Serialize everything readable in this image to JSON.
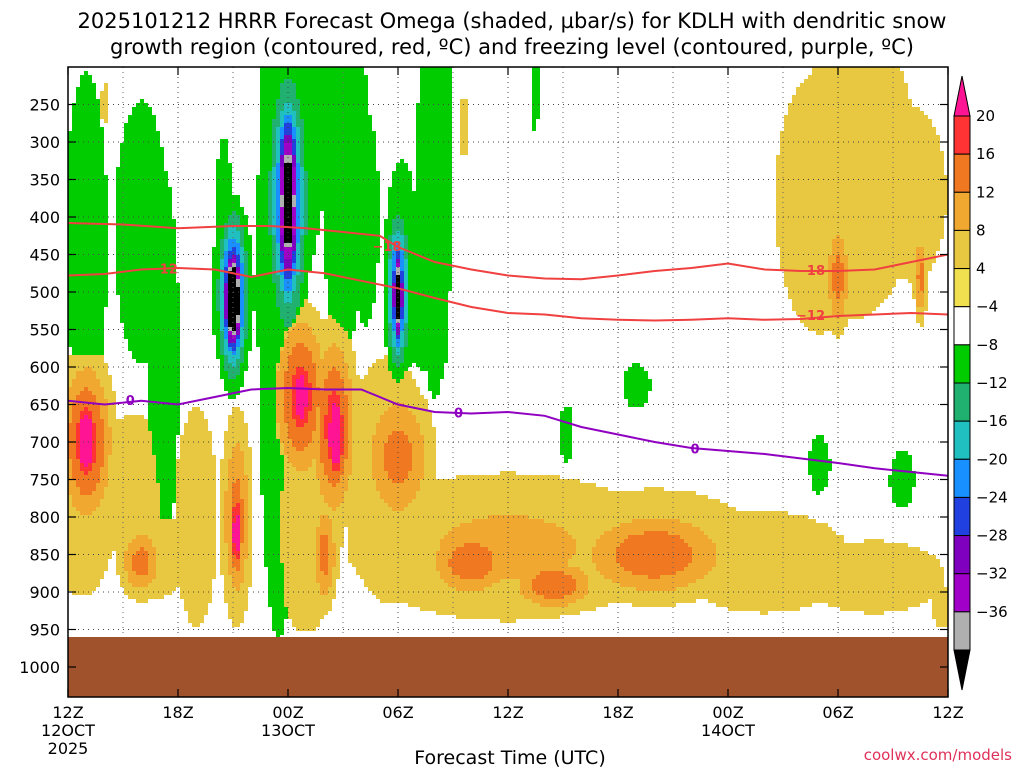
{
  "chart_data": {
    "type": "heatmap",
    "title_line1": "2025101212 HRRR Forecast Omega (shaded, µbar/s) for KDLH with dendritic snow",
    "title_line2": "growth region (contoured, red, ºC) and freezing level (contoured, purple, ºC)",
    "xlabel": "Forecast Time (UTC)",
    "credit": "coolwx.com/models",
    "x_range_hours": [
      0,
      48
    ],
    "y_range_hpa": [
      200,
      1040
    ],
    "x_ticks": [
      {
        "h": 0,
        "label": "12Z",
        "sub1": "12OCT",
        "sub2": "2025"
      },
      {
        "h": 6,
        "label": "18Z",
        "sub1": "",
        "sub2": ""
      },
      {
        "h": 12,
        "label": "00Z",
        "sub1": "13OCT",
        "sub2": ""
      },
      {
        "h": 18,
        "label": "06Z",
        "sub1": "",
        "sub2": ""
      },
      {
        "h": 24,
        "label": "12Z",
        "sub1": "",
        "sub2": ""
      },
      {
        "h": 30,
        "label": "18Z",
        "sub1": "",
        "sub2": ""
      },
      {
        "h": 36,
        "label": "00Z",
        "sub1": "14OCT",
        "sub2": ""
      },
      {
        "h": 42,
        "label": "06Z",
        "sub1": "",
        "sub2": ""
      },
      {
        "h": 48,
        "label": "12Z",
        "sub1": "",
        "sub2": ""
      }
    ],
    "y_ticks": [
      250,
      300,
      350,
      400,
      450,
      500,
      550,
      600,
      650,
      700,
      750,
      800,
      850,
      900,
      950,
      1000
    ],
    "colorbar": {
      "labels": [
        "20",
        "16",
        "12",
        "8",
        "4",
        "−4",
        "−8",
        "−12",
        "−16",
        "−20",
        "−24",
        "−28",
        "−32",
        "−36"
      ],
      "colors": [
        "#ff1493",
        "#ff3333",
        "#f07820",
        "#f0a830",
        "#e8c840",
        "#f0e050",
        "#ffffff",
        "#00cc00",
        "#20b070",
        "#20c0c0",
        "#1890ff",
        "#2040e0",
        "#8000c0",
        "#a000c8",
        "#b0b0b0",
        "#000000"
      ]
    },
    "omega_blobs": [
      {
        "h": 1.0,
        "p": 700,
        "dh": 1.2,
        "dp": 90,
        "v": 12
      },
      {
        "h": 1.0,
        "p": 700,
        "dh": 0.6,
        "dp": 50,
        "v": 18
      },
      {
        "h": 0.8,
        "p": 760,
        "dh": 2.0,
        "dp": 150,
        "v": 5
      },
      {
        "h": 3.5,
        "p": 760,
        "dh": 2.0,
        "dp": 100,
        "v": 5
      },
      {
        "h": 4.0,
        "p": 860,
        "dh": 1.0,
        "dp": 40,
        "v": 9
      },
      {
        "h": 5.0,
        "p": 850,
        "dh": 1.5,
        "dp": 60,
        "v": 5
      },
      {
        "h": 7.0,
        "p": 800,
        "dh": 1.2,
        "dp": 150,
        "v": 5
      },
      {
        "h": 9.2,
        "p": 800,
        "dh": 0.7,
        "dp": 110,
        "v": 9
      },
      {
        "h": 9.2,
        "p": 820,
        "dh": 0.3,
        "dp": 50,
        "v": 16
      },
      {
        "h": 12.7,
        "p": 640,
        "dh": 1.2,
        "dp": 90,
        "v": 12
      },
      {
        "h": 12.7,
        "p": 640,
        "dh": 0.5,
        "dp": 40,
        "v": 18
      },
      {
        "h": 14.5,
        "p": 680,
        "dh": 1.0,
        "dp": 100,
        "v": 12
      },
      {
        "h": 14.6,
        "p": 690,
        "dh": 0.4,
        "dp": 50,
        "v": 21
      },
      {
        "h": 13.0,
        "p": 760,
        "dh": 2.2,
        "dp": 200,
        "v": 5
      },
      {
        "h": 14.0,
        "p": 850,
        "dh": 0.6,
        "dp": 60,
        "v": 9
      },
      {
        "h": 18.0,
        "p": 720,
        "dh": 1.6,
        "dp": 80,
        "v": 9
      },
      {
        "h": 17.5,
        "p": 750,
        "dh": 2.5,
        "dp": 170,
        "v": 5
      },
      {
        "h": 24.0,
        "p": 840,
        "dh": 8.0,
        "dp": 90,
        "v": 6
      },
      {
        "h": 22.0,
        "p": 860,
        "dh": 2.0,
        "dp": 40,
        "v": 10
      },
      {
        "h": 26.5,
        "p": 890,
        "dh": 2.0,
        "dp": 30,
        "v": 10
      },
      {
        "h": 32.0,
        "p": 850,
        "dh": 3.5,
        "dp": 50,
        "v": 10
      },
      {
        "h": 32.0,
        "p": 840,
        "dh": 6.0,
        "dp": 80,
        "v": 5
      },
      {
        "h": 38.0,
        "p": 860,
        "dh": 5.0,
        "dp": 70,
        "v": 5
      },
      {
        "h": 44.0,
        "p": 880,
        "dh": 4.0,
        "dp": 50,
        "v": 5
      },
      {
        "h": 43.0,
        "p": 340,
        "dh": 3.5,
        "dp": 200,
        "v": 5
      },
      {
        "h": 41.0,
        "p": 380,
        "dh": 2.5,
        "dp": 180,
        "v": 5
      },
      {
        "h": 46.0,
        "p": 370,
        "dh": 2.0,
        "dp": 120,
        "v": 5
      },
      {
        "h": 42.0,
        "p": 480,
        "dh": 0.6,
        "dp": 60,
        "v": 9
      },
      {
        "h": 46.5,
        "p": 480,
        "dh": 0.3,
        "dp": 50,
        "v": 9
      },
      {
        "h": 12.1,
        "p": 250,
        "dh": 0.2,
        "dp": 15,
        "v": 5
      },
      {
        "h": 21.6,
        "p": 280,
        "dh": 0.3,
        "dp": 40,
        "v": 5
      },
      {
        "h": 2.0,
        "p": 250,
        "dh": 0.2,
        "dp": 30,
        "v": 5
      },
      {
        "h": 48.0,
        "p": 920,
        "dh": 1.0,
        "dp": 30,
        "v": 5
      },
      {
        "h": 1.0,
        "p": 430,
        "dh": 1.2,
        "dp": 230,
        "v": -5
      },
      {
        "h": 4.0,
        "p": 420,
        "dh": 1.5,
        "dp": 180,
        "v": -5
      },
      {
        "h": 5.2,
        "p": 590,
        "dh": 0.9,
        "dp": 260,
        "v": -5
      },
      {
        "h": 8.5,
        "p": 420,
        "dh": 0.5,
        "dp": 130,
        "v": -5
      },
      {
        "h": 9.0,
        "p": 500,
        "dh": 1.2,
        "dp": 130,
        "v": -5
      },
      {
        "h": 9.0,
        "p": 505,
        "dh": 0.6,
        "dp": 80,
        "v": -20
      },
      {
        "h": 9.0,
        "p": 510,
        "dh": 0.38,
        "dp": 55,
        "v": -36
      },
      {
        "h": 11.5,
        "p": 460,
        "dh": 1.2,
        "dp": 520,
        "v": -5
      },
      {
        "h": 12.5,
        "p": 300,
        "dh": 1.5,
        "dp": 200,
        "v": -5
      },
      {
        "h": 12.0,
        "p": 380,
        "dh": 0.8,
        "dp": 130,
        "v": -16
      },
      {
        "h": 12.0,
        "p": 380,
        "dh": 0.5,
        "dp": 100,
        "v": -28
      },
      {
        "h": 12.0,
        "p": 380,
        "dh": 0.25,
        "dp": 80,
        "v": -36
      },
      {
        "h": 15.0,
        "p": 250,
        "dh": 1.3,
        "dp": 350,
        "v": -5
      },
      {
        "h": 16.2,
        "p": 400,
        "dh": 0.8,
        "dp": 150,
        "v": -5
      },
      {
        "h": 18.2,
        "p": 470,
        "dh": 1.0,
        "dp": 150,
        "v": -5
      },
      {
        "h": 18.0,
        "p": 500,
        "dh": 0.5,
        "dp": 80,
        "v": -16
      },
      {
        "h": 18.0,
        "p": 505,
        "dh": 0.25,
        "dp": 55,
        "v": -28
      },
      {
        "h": 19.5,
        "p": 520,
        "dh": 1.2,
        "dp": 90,
        "v": -5
      },
      {
        "h": 20.0,
        "p": 350,
        "dh": 1.0,
        "dp": 300,
        "v": -5
      },
      {
        "h": 20.3,
        "p": 560,
        "dh": 0.4,
        "dp": 60,
        "v": -5
      },
      {
        "h": 25.5,
        "p": 230,
        "dh": 0.2,
        "dp": 60,
        "v": -5
      },
      {
        "h": 31.0,
        "p": 625,
        "dh": 0.8,
        "dp": 30,
        "v": -5
      },
      {
        "h": 27.2,
        "p": 690,
        "dh": 0.4,
        "dp": 40,
        "v": -5
      },
      {
        "h": 41.0,
        "p": 730,
        "dh": 0.6,
        "dp": 40,
        "v": -5
      },
      {
        "h": 45.5,
        "p": 750,
        "dh": 0.7,
        "dp": 40,
        "v": -5
      }
    ],
    "dendritic_contours": [
      {
        "label": "−18",
        "label_h": 17.4,
        "label_p": 440,
        "points": [
          [
            0,
            408
          ],
          [
            3,
            410
          ],
          [
            6,
            415
          ],
          [
            9,
            412
          ],
          [
            11,
            412
          ],
          [
            13,
            415
          ],
          [
            15,
            420
          ],
          [
            17,
            425
          ],
          [
            18,
            440
          ],
          [
            20,
            460
          ],
          [
            22,
            470
          ],
          [
            24,
            478
          ],
          [
            26,
            482
          ],
          [
            28,
            483
          ],
          [
            30,
            478
          ],
          [
            32,
            472
          ],
          [
            34,
            468
          ],
          [
            36,
            462
          ],
          [
            38,
            470
          ],
          [
            40,
            472
          ],
          [
            42,
            472
          ],
          [
            44,
            470
          ],
          [
            46,
            460
          ],
          [
            48,
            450
          ]
        ],
        "labels2": [
          {
            "label": "−18",
            "h": 40.5,
            "p": 472
          }
        ]
      },
      {
        "label": "−12",
        "label_h": 5.2,
        "label_p": 470,
        "points": [
          [
            0,
            478
          ],
          [
            2,
            476
          ],
          [
            4,
            470
          ],
          [
            6,
            468
          ],
          [
            8,
            470
          ],
          [
            10,
            480
          ],
          [
            12,
            470
          ],
          [
            14,
            475
          ],
          [
            16,
            485
          ],
          [
            18,
            495
          ],
          [
            20,
            508
          ],
          [
            22,
            520
          ],
          [
            24,
            528
          ],
          [
            26,
            530
          ],
          [
            28,
            535
          ],
          [
            30,
            537
          ],
          [
            32,
            538
          ],
          [
            34,
            537
          ],
          [
            36,
            535
          ],
          [
            38,
            537
          ],
          [
            40,
            536
          ],
          [
            42,
            532
          ],
          [
            44,
            530
          ],
          [
            46,
            528
          ],
          [
            48,
            530
          ]
        ],
        "labels2": [
          {
            "label": "−12",
            "h": 40.5,
            "p": 532
          }
        ]
      }
    ],
    "freezing_level": {
      "label": "0",
      "points": [
        [
          0,
          645
        ],
        [
          2,
          650
        ],
        [
          4,
          645
        ],
        [
          6,
          650
        ],
        [
          8,
          640
        ],
        [
          10,
          630
        ],
        [
          12,
          628
        ],
        [
          14,
          630
        ],
        [
          16,
          630
        ],
        [
          18,
          650
        ],
        [
          20,
          660
        ],
        [
          22,
          662
        ],
        [
          24,
          660
        ],
        [
          26,
          665
        ],
        [
          28,
          680
        ],
        [
          30,
          690
        ],
        [
          32,
          700
        ],
        [
          34,
          708
        ],
        [
          36,
          712
        ],
        [
          38,
          716
        ],
        [
          40,
          722
        ],
        [
          42,
          728
        ],
        [
          44,
          735
        ],
        [
          46,
          740
        ],
        [
          48,
          745
        ]
      ],
      "label_pts": [
        [
          3.4,
          645
        ],
        [
          21.3,
          662
        ],
        [
          34.2,
          710
        ]
      ]
    },
    "terrain_top_hpa": 960
  }
}
